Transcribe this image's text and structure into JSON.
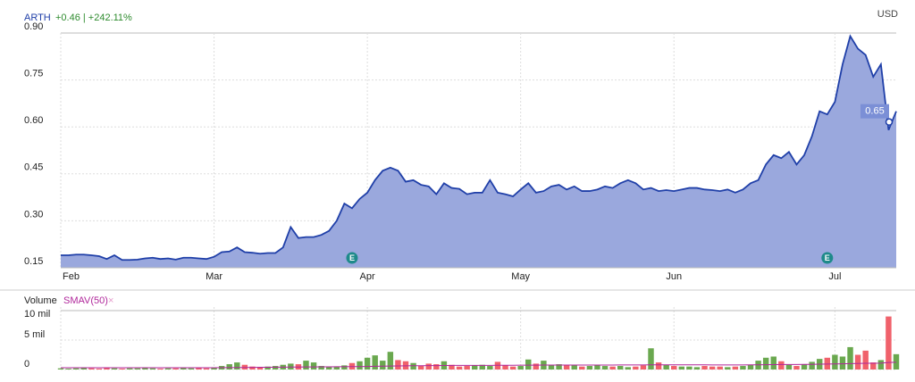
{
  "chart_data": {
    "type": "area",
    "symbol": "ARTH",
    "change": "+0.46 | +242.11%",
    "currency": "USD",
    "color": "#1f3fa8",
    "fill": "#9aa8dd",
    "grid": true,
    "xlim": [
      0,
      109
    ],
    "xticks": [
      {
        "value": 0,
        "label": "Feb"
      },
      {
        "value": 20,
        "label": "Mar"
      },
      {
        "value": 40,
        "label": "Apr"
      },
      {
        "value": 60,
        "label": "May"
      },
      {
        "value": 80,
        "label": "Jun"
      },
      {
        "value": 101,
        "label": "Jul"
      }
    ],
    "ylim": [
      0.15,
      0.9
    ],
    "yticks": [
      {
        "value": 0.9,
        "label": "0.90"
      },
      {
        "value": 0.75,
        "label": "0.75"
      },
      {
        "value": 0.6,
        "label": "0.60"
      },
      {
        "value": 0.45,
        "label": "0.45"
      },
      {
        "value": 0.3,
        "label": "0.30"
      },
      0.15
    ],
    "values": [
      0.19,
      0.19,
      0.192,
      0.192,
      0.19,
      0.187,
      0.178,
      0.19,
      0.175,
      0.175,
      0.176,
      0.18,
      0.182,
      0.178,
      0.18,
      0.176,
      0.182,
      0.182,
      0.18,
      0.178,
      0.185,
      0.2,
      0.202,
      0.215,
      0.2,
      0.198,
      0.195,
      0.197,
      0.197,
      0.215,
      0.28,
      0.245,
      0.248,
      0.248,
      0.255,
      0.268,
      0.3,
      0.355,
      0.34,
      0.37,
      0.39,
      0.43,
      0.46,
      0.47,
      0.46,
      0.425,
      0.43,
      0.415,
      0.41,
      0.385,
      0.42,
      0.405,
      0.402,
      0.385,
      0.39,
      0.39,
      0.43,
      0.39,
      0.385,
      0.378,
      0.4,
      0.42,
      0.39,
      0.395,
      0.41,
      0.415,
      0.4,
      0.41,
      0.395,
      0.395,
      0.4,
      0.41,
      0.405,
      0.42,
      0.43,
      0.42,
      0.4,
      0.405,
      0.395,
      0.398,
      0.395,
      0.4,
      0.405,
      0.405,
      0.4,
      0.398,
      0.395,
      0.4,
      0.39,
      0.4,
      0.42,
      0.43,
      0.48,
      0.51,
      0.5,
      0.52,
      0.48,
      0.51,
      0.57,
      0.65,
      0.64,
      0.68,
      0.8,
      0.89,
      0.85,
      0.83,
      0.76,
      0.8,
      0.59,
      0.65
    ],
    "events": [
      {
        "label": "E",
        "x": 38
      },
      {
        "label": "E",
        "x": 100
      }
    ],
    "volume": {
      "title": "Volume",
      "indicator": "SMAV(50)",
      "close": "×",
      "up_color": "#6aa84f",
      "down_color": "#f0616b",
      "smav_color": "#b0279b",
      "ylim": [
        0,
        10000000
      ],
      "yticks": [
        {
          "value": 10000000,
          "label": "10 mil"
        },
        {
          "value": 5000000,
          "label": "5 mil"
        },
        0
      ],
      "values": [
        200000,
        150000,
        200000,
        250000,
        200000,
        150000,
        300000,
        200000,
        150000,
        200000,
        200000,
        250000,
        200000,
        150000,
        200000,
        200000,
        250000,
        200000,
        300000,
        200000,
        300000,
        600000,
        900000,
        1200000,
        800000,
        500000,
        400000,
        500000,
        600000,
        800000,
        1000000,
        900000,
        1500000,
        1200000,
        600000,
        400000,
        500000,
        700000,
        1100000,
        1400000,
        2000000,
        2400000,
        1500000,
        3000000,
        1600000,
        1400000,
        1100000,
        600000,
        1000000,
        900000,
        1400000,
        800000,
        500000,
        600000,
        700000,
        800000,
        600000,
        1300000,
        700000,
        500000,
        600000,
        1700000,
        1000000,
        1500000,
        800000,
        900000,
        700000,
        800000,
        500000,
        600000,
        700000,
        600000,
        500000,
        600000,
        400000,
        500000,
        700000,
        3600000,
        1200000,
        800000,
        600000,
        500000,
        500000,
        400000,
        600000,
        500000,
        500000,
        400000,
        500000,
        600000,
        800000,
        1500000,
        2000000,
        2200000,
        1400000,
        800000,
        600000,
        900000,
        1300000,
        1800000,
        2000000,
        2500000,
        2200000,
        3800000,
        2500000,
        3200000,
        1200000,
        1600000,
        9000000,
        2600000
      ],
      "smav": [
        300000,
        300000,
        300000,
        300000,
        300000,
        300000,
        300000,
        300000,
        300000,
        300000,
        300000,
        300000,
        300000,
        300000,
        300000,
        300000,
        300000,
        300000,
        300000,
        300000,
        310000,
        320000,
        330000,
        340000,
        350000,
        360000,
        370000,
        380000,
        390000,
        400000,
        410000,
        420000,
        430000,
        440000,
        450000,
        460000,
        470000,
        480000,
        490000,
        500000,
        520000,
        540000,
        560000,
        580000,
        600000,
        620000,
        640000,
        650000,
        660000,
        670000,
        680000,
        690000,
        700000,
        700000,
        700000,
        700000,
        710000,
        720000,
        720000,
        720000,
        730000,
        740000,
        740000,
        750000,
        750000,
        750000,
        750000,
        750000,
        750000,
        750000,
        760000,
        760000,
        760000,
        770000,
        770000,
        770000,
        780000,
        800000,
        800000,
        800000,
        800000,
        800000,
        800000,
        790000,
        790000,
        780000,
        780000,
        780000,
        780000,
        780000,
        790000,
        800000,
        820000,
        840000,
        850000,
        860000,
        860000,
        870000,
        880000,
        900000,
        920000,
        950000,
        970000,
        1000000,
        1030000,
        1060000,
        1070000,
        1080000,
        1200000,
        1230000
      ]
    }
  }
}
